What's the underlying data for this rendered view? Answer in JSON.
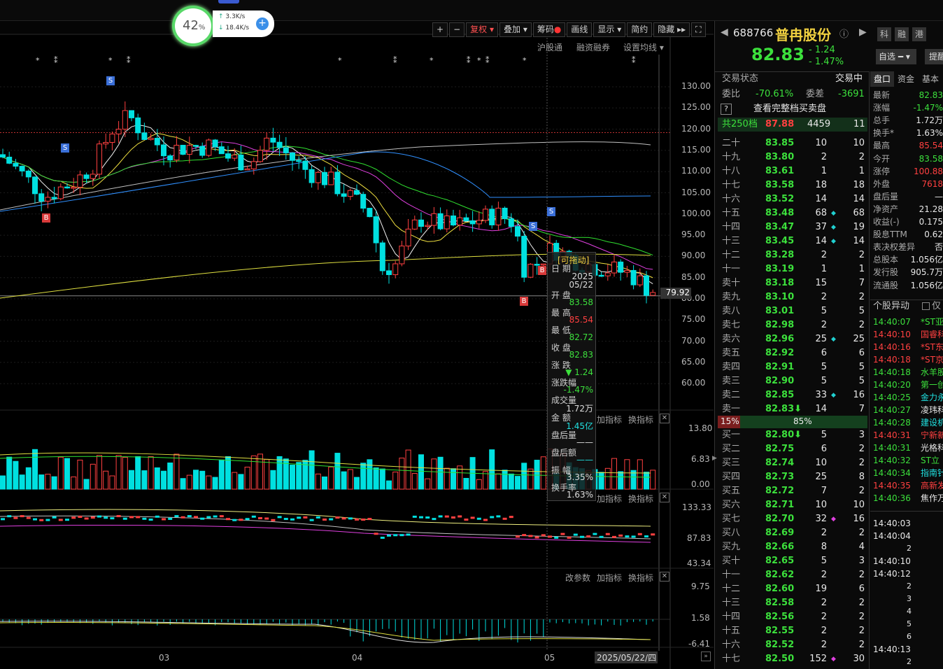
{
  "widget": {
    "pct": "42",
    "pct_unit": "%",
    "up": "3.3K/s",
    "down": "18.4K/s"
  },
  "toolbar": [
    "+",
    "−",
    "复权",
    "叠加",
    "筹码",
    "画线",
    "显示",
    "简约",
    "隐藏"
  ],
  "subbar": [
    "沪股通",
    "融资融券",
    "设置均线"
  ],
  "price_axis": [
    "130.00",
    "125.00",
    "120.00",
    "115.00",
    "110.00",
    "105.00",
    "100.00",
    "95.00",
    "90.00",
    "85.00",
    "80.00",
    "75.00",
    "70.00",
    "65.00",
    "60.00"
  ],
  "current_price_tag": "79.92",
  "vol_axis": [
    "13.80",
    "6.83",
    "0.00"
  ],
  "ind2_axis": [
    "133.33",
    "87.83",
    "43.34"
  ],
  "ind3_axis": [
    "9.75",
    "1.58",
    "-6.41"
  ],
  "panel_buttons": [
    "加指标",
    "换指标"
  ],
  "panel_buttons3": [
    "改参数",
    "加指标",
    "换指标"
  ],
  "months": [
    "03",
    "04",
    "05"
  ],
  "date_tag": "2025/05/22/四",
  "markers": {
    "S": "S",
    "B": "B"
  },
  "tooltip": {
    "title": "[可拖动]",
    "date_lbl": "日 期",
    "year": "2025",
    "date": "05/22",
    "open_lbl": "开 盘",
    "open": "83.58",
    "high_lbl": "最 高",
    "high": "85.54",
    "low_lbl": "最 低",
    "low": "82.72",
    "close_lbl": "收 盘",
    "close": "82.83",
    "chg_lbl": "涨 跌",
    "chg": "▼ 1.24",
    "pct_lbl": "涨跌幅",
    "pct": "-1.47%",
    "vol_lbl": "成交量",
    "vol": "1.72万",
    "amt_lbl": "金 额",
    "amt": "1.45亿",
    "after_lbl": "盘后量",
    "after": "——",
    "afteramt_lbl": "盘后额",
    "afteramt": "——",
    "amp_lbl": "振 幅",
    "amp": "3.35%",
    "turn_lbl": "换手率",
    "turn": "1.63%"
  },
  "stock": {
    "code": "688766",
    "name": "普冉股份",
    "price": "82.83",
    "chg": "- 1.24",
    "pct": "- 1.47%",
    "tags": [
      "科",
      "融",
      "港"
    ],
    "watch": "自选",
    "remind": "提醒"
  },
  "status": {
    "label": "交易状态",
    "value": "交易中",
    "wb_lbl": "委比",
    "wb": "-70.61%",
    "wc_lbl": "委差",
    "wc": "-3691",
    "q": "?",
    "full_book": "查看完整档买卖盘",
    "total_lbl": "共250档",
    "total_price": "87.88",
    "total_vol": "4459",
    "total_cnt": "11"
  },
  "asks": [
    [
      "二十",
      "83.85",
      "10",
      "",
      "10"
    ],
    [
      "十九",
      "83.80",
      "2",
      "",
      "2"
    ],
    [
      "十八",
      "83.61",
      "1",
      "",
      "1"
    ],
    [
      "十七",
      "83.58",
      "18",
      "",
      "18"
    ],
    [
      "十六",
      "83.52",
      "14",
      "",
      "14"
    ],
    [
      "十五",
      "83.48",
      "68",
      "◆",
      "68"
    ],
    [
      "十四",
      "83.47",
      "37",
      "◆",
      "19"
    ],
    [
      "十三",
      "83.45",
      "14",
      "◆",
      "14"
    ],
    [
      "十二",
      "83.28",
      "2",
      "",
      "2"
    ],
    [
      "十一",
      "83.19",
      "1",
      "",
      "1"
    ],
    [
      "卖十",
      "83.18",
      "15",
      "",
      "7"
    ],
    [
      "卖九",
      "83.10",
      "2",
      "",
      "2"
    ],
    [
      "卖八",
      "83.01",
      "5",
      "",
      "5"
    ],
    [
      "卖七",
      "82.98",
      "2",
      "",
      "2"
    ],
    [
      "卖六",
      "82.96",
      "25",
      "◆",
      "25"
    ],
    [
      "卖五",
      "82.92",
      "6",
      "",
      "6"
    ],
    [
      "卖四",
      "82.91",
      "5",
      "",
      "5"
    ],
    [
      "卖三",
      "82.90",
      "5",
      "",
      "5"
    ],
    [
      "卖二",
      "82.85",
      "33",
      "◆",
      "16"
    ],
    [
      "卖一",
      "82.83⬇",
      "14",
      "",
      "7"
    ]
  ],
  "ratio": {
    "buy": "15%",
    "sell": "85%"
  },
  "bids": [
    [
      "买一",
      "82.80⬇",
      "5",
      "",
      "3"
    ],
    [
      "买二",
      "82.75",
      "6",
      "",
      "2"
    ],
    [
      "买三",
      "82.74",
      "10",
      "",
      "2"
    ],
    [
      "买四",
      "82.73",
      "25",
      "",
      "8"
    ],
    [
      "买五",
      "82.72",
      "7",
      "",
      "2"
    ],
    [
      "买六",
      "82.71",
      "10",
      "",
      "10"
    ],
    [
      "买七",
      "82.70",
      "32",
      "◆",
      "16"
    ],
    [
      "买八",
      "82.69",
      "2",
      "",
      "2"
    ],
    [
      "买九",
      "82.66",
      "8",
      "",
      "4"
    ],
    [
      "买十",
      "82.65",
      "5",
      "",
      "3"
    ],
    [
      "十一",
      "82.62",
      "2",
      "",
      "2"
    ],
    [
      "十二",
      "82.60",
      "19",
      "",
      "6"
    ],
    [
      "十三",
      "82.58",
      "2",
      "",
      "2"
    ],
    [
      "十四",
      "82.56",
      "2",
      "",
      "2"
    ],
    [
      "十五",
      "82.55",
      "2",
      "",
      "2"
    ],
    [
      "十六",
      "82.52",
      "2",
      "",
      "2"
    ],
    [
      "十七",
      "82.50",
      "152",
      "◆",
      "30"
    ]
  ],
  "tabs": [
    "盘口",
    "资金",
    "基本"
  ],
  "info": [
    [
      "最新",
      "82.83",
      "g"
    ],
    [
      "涨幅",
      "-1.47%",
      "g"
    ],
    [
      "总手",
      "1.72万",
      "w"
    ],
    [
      "换手*",
      "1.63%",
      "w"
    ],
    [
      "最高",
      "85.54",
      "r"
    ],
    [
      "今开",
      "83.58",
      "g"
    ],
    [
      "涨停",
      "100.88",
      "r"
    ],
    [
      "外盘",
      "7618",
      "r"
    ],
    [
      "盘后量",
      "—",
      "w"
    ],
    [
      "净资产",
      "21.28",
      "w"
    ],
    [
      "收益(-)",
      "0.175",
      "w"
    ],
    [
      "股息TTM",
      "0.62",
      "w"
    ],
    [
      "表决权差异",
      "否",
      "w"
    ],
    [
      "总股本",
      "1.056亿",
      "w"
    ],
    [
      "发行股",
      "905.7万",
      "w"
    ],
    [
      "流通股",
      "1.056亿",
      "w"
    ]
  ],
  "abnormal": {
    "title": "个股异动",
    "checkbox": "仅"
  },
  "events": [
    [
      "14:40:07",
      "*ST亚",
      "g"
    ],
    [
      "14:40:10",
      "国睿科",
      "r"
    ],
    [
      "14:40:16",
      "*ST东",
      "r"
    ],
    [
      "14:40:18",
      "*ST京",
      "r"
    ],
    [
      "14:40:18",
      "水羊股",
      "g"
    ],
    [
      "14:40:20",
      "第一创",
      "g"
    ],
    [
      "14:40:25",
      "金力永",
      "c"
    ],
    [
      "14:40:27",
      "凌玮科",
      "w"
    ],
    [
      "14:40:28",
      "建设机",
      "c"
    ],
    [
      "14:40:31",
      "宁新新",
      "r"
    ],
    [
      "14:40:31",
      "光格科",
      "w"
    ],
    [
      "14:40:32",
      "ST立",
      "g"
    ],
    [
      "14:40:34",
      "指南针",
      "c"
    ],
    [
      "14:40:35",
      "高新发",
      "r"
    ],
    [
      "14:40:36",
      "焦作万",
      "w"
    ]
  ],
  "ticks": [
    [
      "14:40:03",
      ""
    ],
    [
      "14:40:04",
      ""
    ],
    [
      "",
      "2"
    ],
    [
      "14:40:10",
      ""
    ],
    [
      "14:40:12",
      ""
    ],
    [
      "",
      "2"
    ],
    [
      "",
      "3"
    ],
    [
      "",
      "4"
    ],
    [
      "",
      "5"
    ],
    [
      "",
      "6"
    ],
    [
      "14:40:13",
      ""
    ],
    [
      "",
      "2"
    ]
  ]
}
